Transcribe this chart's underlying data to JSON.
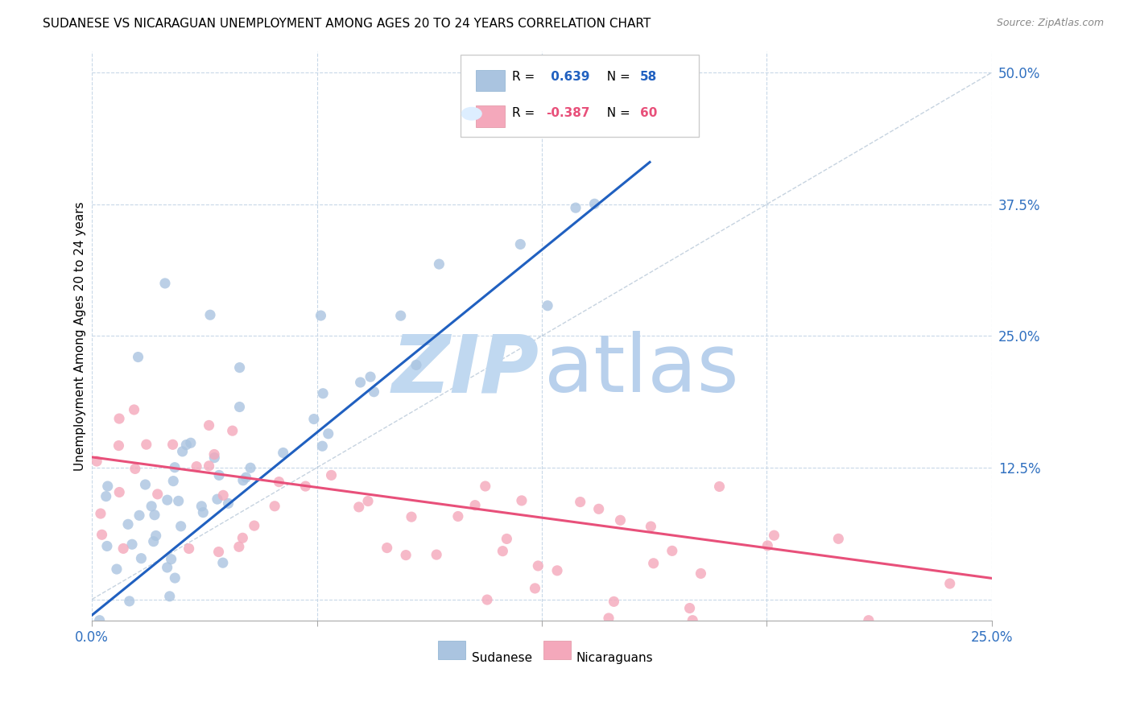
{
  "title": "SUDANESE VS NICARAGUAN UNEMPLOYMENT AMONG AGES 20 TO 24 YEARS CORRELATION CHART",
  "source_text": "Source: ZipAtlas.com",
  "ylabel": "Unemployment Among Ages 20 to 24 years",
  "xlim": [
    0.0,
    0.25
  ],
  "ylim": [
    -0.02,
    0.52
  ],
  "xticks": [
    0.0,
    0.0625,
    0.125,
    0.1875,
    0.25
  ],
  "yticks_right": [
    0.0,
    0.125,
    0.25,
    0.375,
    0.5
  ],
  "yticklabels_right": [
    "",
    "12.5%",
    "25.0%",
    "37.5%",
    "50.0%"
  ],
  "R_sudanese": 0.639,
  "N_sudanese": 58,
  "R_nicaraguan": -0.387,
  "N_nicaraguan": 60,
  "sudanese_color": "#aac4e0",
  "nicaraguan_color": "#f4a8bb",
  "sudanese_line_color": "#2060c0",
  "nicaraguan_line_color": "#e8507a",
  "reference_line_color": "#b8c8d8",
  "background_color": "#ffffff",
  "grid_color": "#c8d8e8",
  "watermark_zip_color": "#c0d8f0",
  "watermark_atlas_color": "#b8d0ec",
  "blue_line_x0": 0.0,
  "blue_line_y0": -0.015,
  "blue_line_x1": 0.155,
  "blue_line_y1": 0.415,
  "pink_line_x0": 0.0,
  "pink_line_y0": 0.135,
  "pink_line_x1": 0.25,
  "pink_line_y1": 0.02
}
